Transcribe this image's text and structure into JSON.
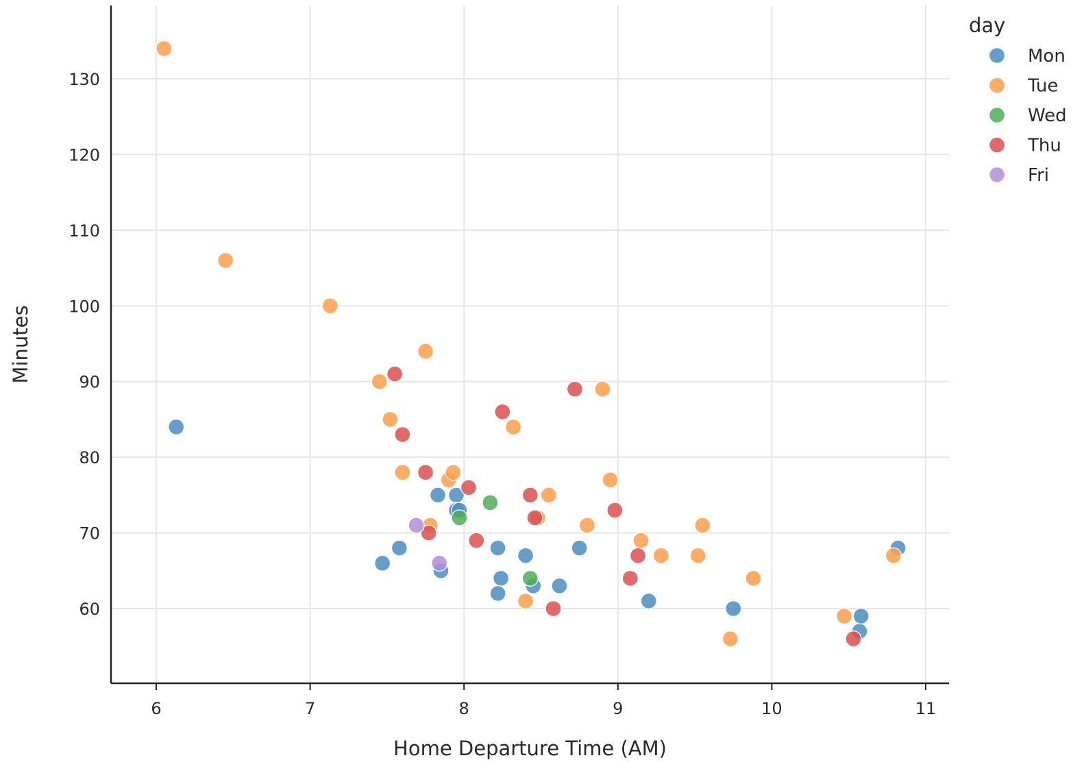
{
  "chart_data": {
    "type": "scatter",
    "xlabel": "Home Departure Time (AM)",
    "ylabel": "Minutes",
    "xlim": [
      5.7,
      11.15
    ],
    "ylim": [
      50,
      140
    ],
    "xticks": [
      6,
      7,
      8,
      9,
      10,
      11
    ],
    "yticks": [
      60,
      70,
      80,
      90,
      100,
      110,
      120,
      130
    ],
    "grid": true,
    "legend": {
      "title": "day",
      "placement": "top-right"
    },
    "series": [
      {
        "name": "Mon",
        "color": "#4C8EC3",
        "points": [
          [
            6.13,
            84
          ],
          [
            7.47,
            66
          ],
          [
            7.58,
            68
          ],
          [
            7.83,
            75
          ],
          [
            7.85,
            65
          ],
          [
            7.95,
            75
          ],
          [
            7.95,
            73
          ],
          [
            7.97,
            73
          ],
          [
            8.22,
            68
          ],
          [
            8.24,
            64
          ],
          [
            8.22,
            62
          ],
          [
            8.4,
            67
          ],
          [
            8.45,
            63
          ],
          [
            8.62,
            63
          ],
          [
            8.75,
            68
          ],
          [
            9.2,
            61
          ],
          [
            9.75,
            60
          ],
          [
            10.57,
            57
          ],
          [
            10.58,
            59
          ],
          [
            10.82,
            68
          ]
        ]
      },
      {
        "name": "Tue",
        "color": "#FF9E4A",
        "points": [
          [
            6.05,
            134
          ],
          [
            6.45,
            106
          ],
          [
            7.13,
            100
          ],
          [
            7.45,
            90
          ],
          [
            7.52,
            85
          ],
          [
            7.6,
            78
          ],
          [
            7.75,
            94
          ],
          [
            7.78,
            71
          ],
          [
            7.9,
            77
          ],
          [
            7.93,
            78
          ],
          [
            8.32,
            84
          ],
          [
            8.4,
            61
          ],
          [
            8.48,
            72
          ],
          [
            8.55,
            75
          ],
          [
            8.8,
            71
          ],
          [
            8.9,
            89
          ],
          [
            8.95,
            77
          ],
          [
            9.15,
            69
          ],
          [
            9.28,
            67
          ],
          [
            9.52,
            67
          ],
          [
            9.55,
            71
          ],
          [
            9.73,
            56
          ],
          [
            9.88,
            64
          ],
          [
            10.47,
            59
          ],
          [
            10.79,
            67
          ]
        ]
      },
      {
        "name": "Wed",
        "color": "#4FAF55",
        "points": [
          [
            8.17,
            74
          ],
          [
            7.97,
            72
          ],
          [
            8.43,
            64
          ]
        ]
      },
      {
        "name": "Thu",
        "color": "#DE4F4F",
        "points": [
          [
            7.55,
            91
          ],
          [
            7.6,
            83
          ],
          [
            7.75,
            78
          ],
          [
            7.77,
            70
          ],
          [
            8.03,
            76
          ],
          [
            8.08,
            69
          ],
          [
            8.25,
            86
          ],
          [
            8.43,
            75
          ],
          [
            8.46,
            72
          ],
          [
            8.58,
            60
          ],
          [
            8.72,
            89
          ],
          [
            8.98,
            73
          ],
          [
            9.08,
            64
          ],
          [
            9.13,
            67
          ],
          [
            10.53,
            56
          ]
        ]
      },
      {
        "name": "Fri",
        "color": "#B28FD8",
        "points": [
          [
            7.69,
            71
          ],
          [
            7.84,
            66
          ]
        ]
      }
    ]
  }
}
